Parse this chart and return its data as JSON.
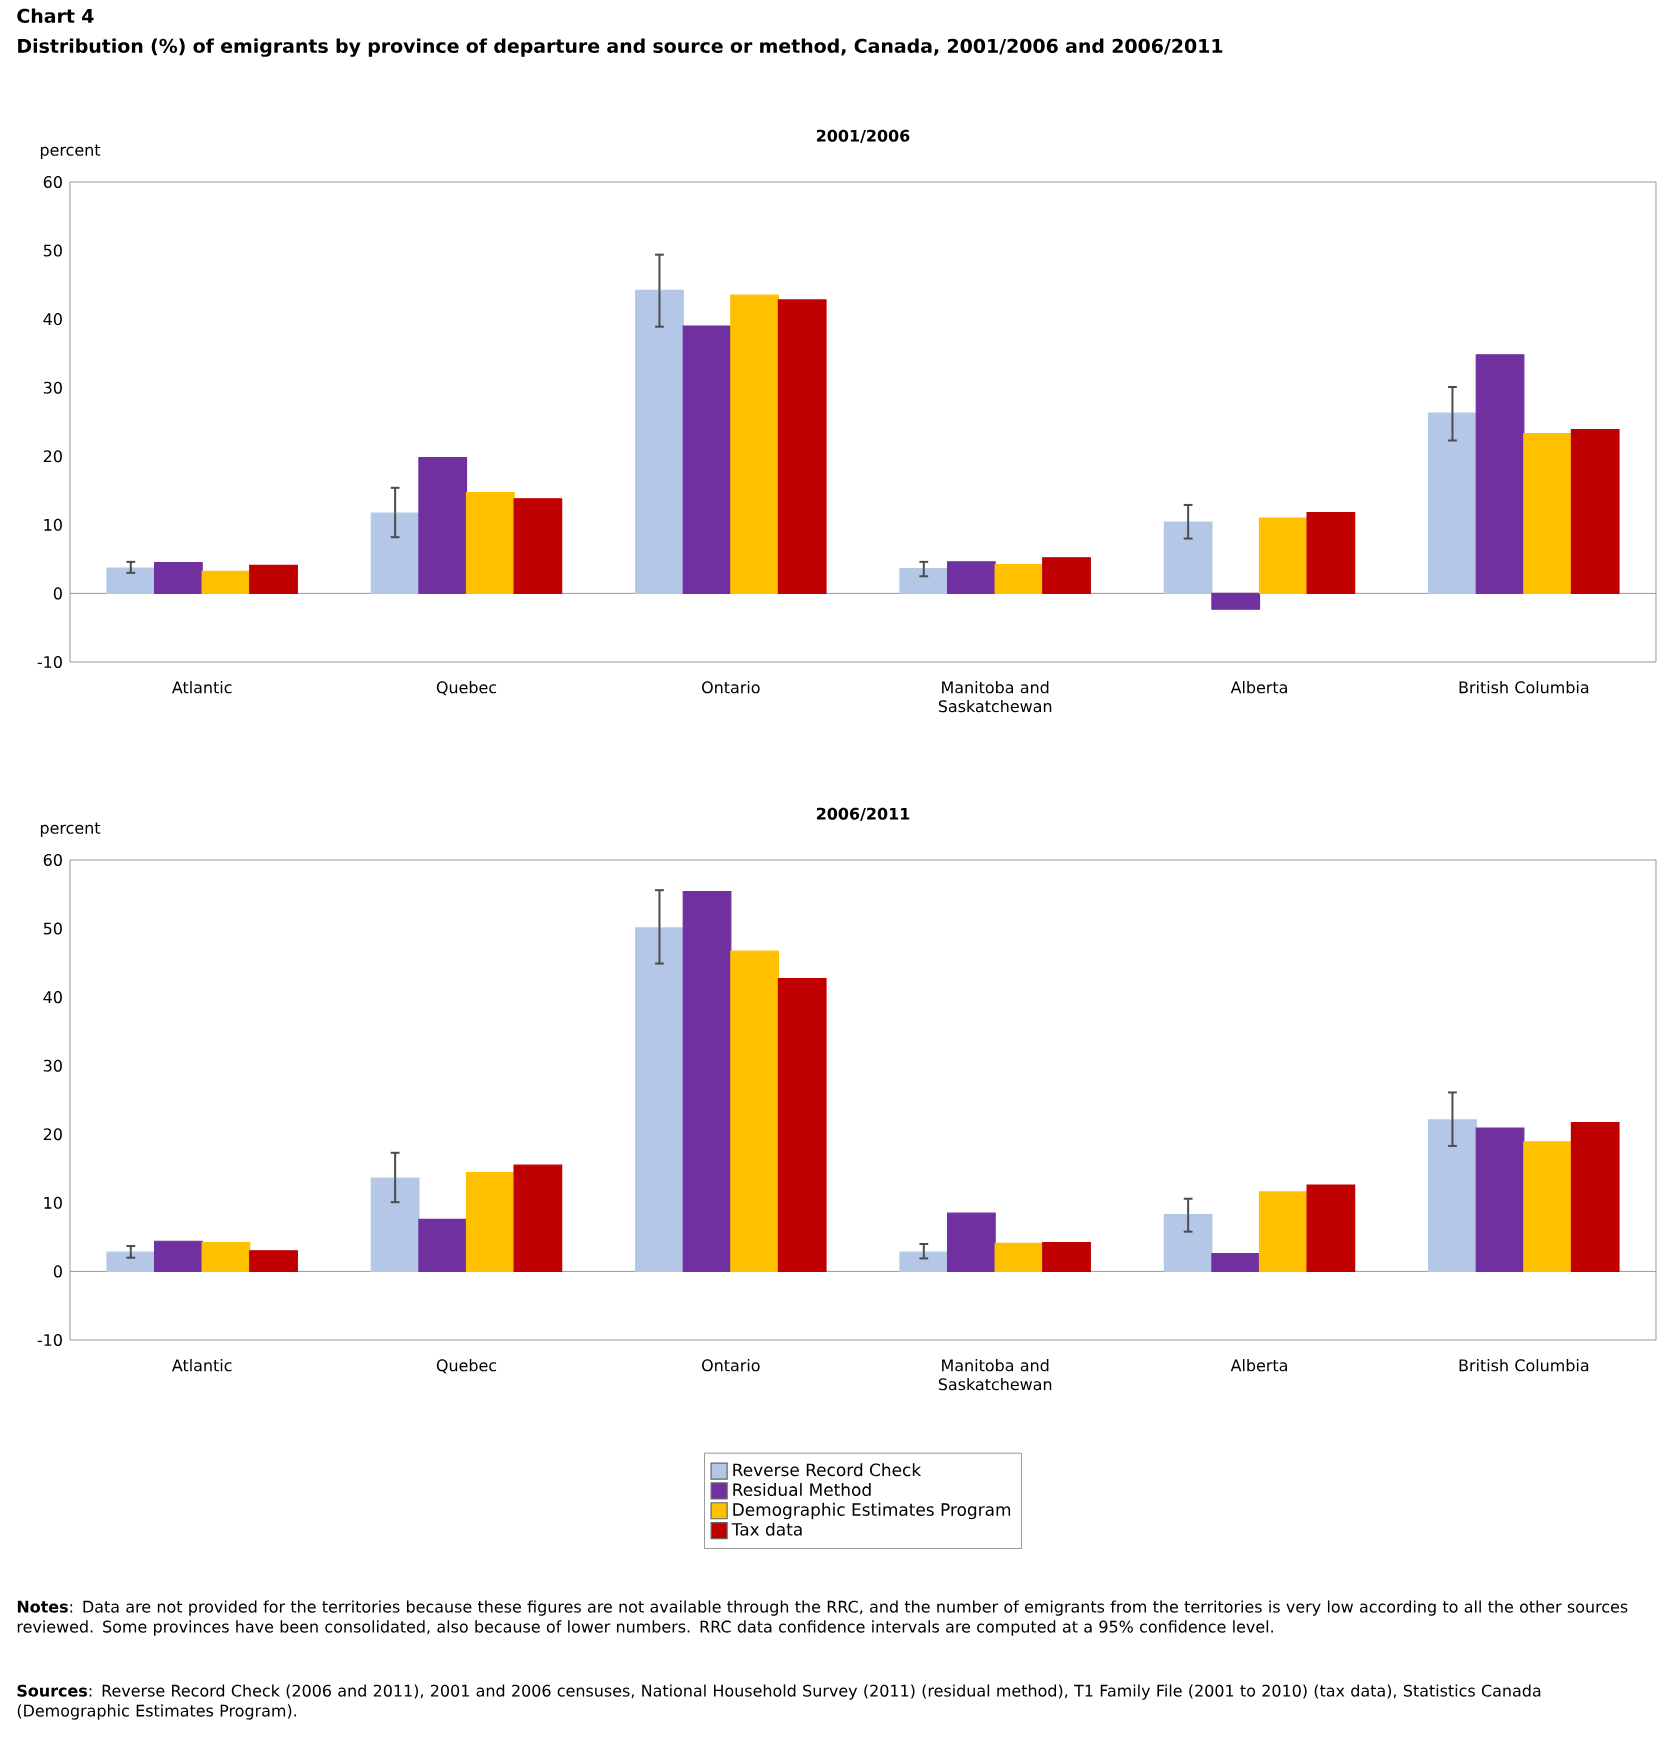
{
  "chart_data": [
    {
      "type": "bar",
      "title": "2001/2006",
      "ylabel": "percent",
      "annotations": [
        "Chart 4",
        "Distribution (%) of emigrants by province of departure and source or method, Canada, 2001/2006 and 2006/2011"
      ],
      "categories": [
        "Atlantic",
        "Quebec",
        "Ontario",
        "Manitoba and Saskatchewan",
        "Alberta",
        "British Columbia"
      ],
      "ylim": [
        -10,
        60
      ],
      "yticks": [
        -10,
        0,
        10,
        20,
        30,
        40,
        50,
        60
      ],
      "legend": false,
      "series": [
        {
          "color": "#b4c7e7",
          "values": [
            3.7,
            11.7,
            44.2,
            3.6,
            10.4,
            26.3
          ],
          "errors": [
            [
              3.0,
              4.6
            ],
            [
              8.2,
              15.4
            ],
            [
              38.9,
              49.4
            ],
            [
              2.5,
              4.6
            ],
            [
              8.0,
              12.9
            ],
            [
              22.3,
              30.1
            ]
          ]
        },
        {
          "color": "#7030a0",
          "values": [
            4.5,
            19.8,
            39.0,
            4.6,
            -2.3,
            34.8
          ]
        },
        {
          "color": "#ffc000",
          "values": [
            3.2,
            14.7,
            43.5,
            4.2,
            11.0,
            23.3
          ]
        },
        {
          "color": "#c00000",
          "values": [
            4.1,
            13.8,
            42.8,
            5.2,
            11.8,
            23.9
          ]
        }
      ]
    },
    {
      "type": "bar",
      "title": "2006/2011",
      "ylabel": "percent",
      "annotations": [
        "**Notes**: Data are not provided for the territories because these figures are not available through the RRC, and the number of emigrants from the territories is very low according to all the other sources reviewed. Some provinces have been consolidated, also because of lower numbers. RRC data confidence intervals are computed at a 95% confidence level.",
        "**Sources**: Reverse Record Check (2006 and 2011), 2001 and 2006 censuses, National Household Survey (2011) (residual method), T1 Family File (2001 to 2010) (tax data), Statistics Canada (Demographic Estimates Program)."
      ],
      "categories": [
        "Atlantic",
        "Quebec",
        "Ontario",
        "Manitoba and Saskatchewan",
        "Alberta",
        "British Columbia"
      ],
      "ylim": [
        -10,
        60
      ],
      "yticks": [
        -10,
        0,
        10,
        20,
        30,
        40,
        50,
        60
      ],
      "legend": "bottom",
      "series": [
        {
          "name": "Reverse Record Check",
          "color": "#b4c7e7",
          "values": [
            2.8,
            13.6,
            50.1,
            2.8,
            8.3,
            22.1
          ],
          "errors": [
            [
              2.0,
              3.7
            ],
            [
              10.1,
              17.3
            ],
            [
              44.9,
              55.6
            ],
            [
              1.9,
              4.0
            ],
            [
              5.8,
              10.6
            ],
            [
              18.3,
              26.1
            ]
          ]
        },
        {
          "name": "Residual Method",
          "color": "#7030a0",
          "values": [
            4.4,
            7.6,
            55.4,
            8.5,
            2.6,
            20.9
          ]
        },
        {
          "name": "Demographic Estimates Program",
          "color": "#ffc000",
          "values": [
            4.2,
            14.4,
            46.7,
            4.1,
            11.6,
            18.9
          ]
        },
        {
          "name": "Tax data",
          "color": "#c00000",
          "values": [
            3.0,
            15.5,
            42.7,
            4.2,
            12.6,
            21.7
          ]
        }
      ]
    }
  ]
}
